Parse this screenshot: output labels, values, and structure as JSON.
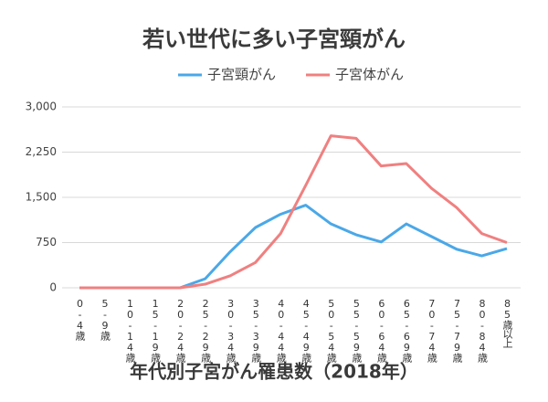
{
  "chart_data": {
    "type": "line",
    "title": "若い世代に多い子宮頸がん",
    "x_label": "年代別子宮がん罹患数（2018年）",
    "categories": [
      "0-4歳",
      "5-9歳",
      "10-14歳",
      "15-19歳",
      "20-24歳",
      "25-29歳",
      "30-34歳",
      "35-39歳",
      "40-44歳",
      "45-49歳",
      "50-54歳",
      "55-59歳",
      "60-64歳",
      "65-69歳",
      "70-74歳",
      "75-79歳",
      "80-84歳",
      "85歳以上"
    ],
    "series": [
      {
        "name": "子宮頸がん",
        "color": "#4aa8e8",
        "values": [
          0,
          0,
          0,
          0,
          0,
          150,
          600,
          1000,
          1220,
          1370,
          1060,
          880,
          760,
          1060,
          850,
          640,
          530,
          650
        ]
      },
      {
        "name": "子宮体がん",
        "color": "#f08080",
        "values": [
          0,
          0,
          0,
          0,
          0,
          60,
          200,
          420,
          900,
          1700,
          2520,
          2480,
          2020,
          2060,
          1650,
          1330,
          900,
          750
        ]
      }
    ],
    "ylim": [
      0,
      3000
    ],
    "yticks": [
      0,
      {
        "value": 750,
        "label": "750"
      },
      {
        "value": 1500,
        "label": "1,500"
      },
      {
        "value": 2250,
        "label": "2,250"
      },
      {
        "value": 3000,
        "label": "3,000"
      }
    ],
    "grid": true
  }
}
